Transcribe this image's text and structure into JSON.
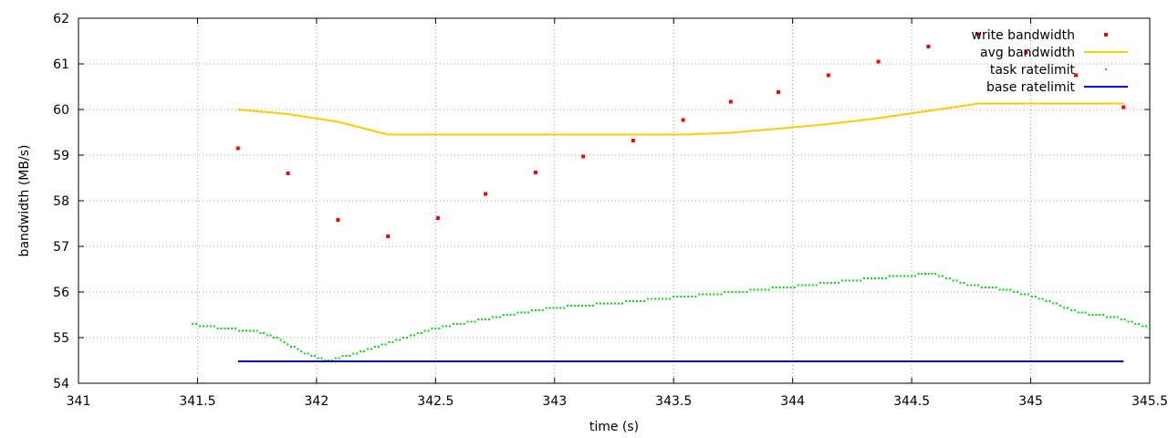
{
  "chart_data": {
    "type": "scatter",
    "title": "",
    "xlabel": "time (s)",
    "ylabel": "bandwidth (MB/s)",
    "xlim": [
      341,
      345.5
    ],
    "ylim": [
      54,
      62
    ],
    "xticks": [
      "341",
      "341.5",
      "342",
      "342.5",
      "343",
      "343.5",
      "344",
      "344.5",
      "345",
      "345.5"
    ],
    "yticks": [
      "54",
      "55",
      "56",
      "57",
      "58",
      "59",
      "60",
      "61",
      "62"
    ],
    "grid": true,
    "legend_position": "top-right",
    "series": [
      {
        "name": "write bandwidth",
        "style": "points",
        "color": "#ff0000",
        "x": [
          341.67,
          341.88,
          342.09,
          342.3,
          342.51,
          342.71,
          342.92,
          343.12,
          343.33,
          343.54,
          343.74,
          343.94,
          344.15,
          344.36,
          344.57,
          344.78,
          344.98,
          345.19,
          345.39
        ],
        "y": [
          59.15,
          58.6,
          57.58,
          57.22,
          57.62,
          58.15,
          58.62,
          58.97,
          59.32,
          59.77,
          60.17,
          60.38,
          60.75,
          61.05,
          61.38,
          61.65,
          61.25,
          60.75,
          60.05
        ]
      },
      {
        "name": "avg bandwidth",
        "style": "line",
        "color": "#ffcc00",
        "x": [
          341.67,
          341.88,
          342.09,
          342.3,
          342.51,
          342.71,
          342.92,
          343.12,
          343.33,
          343.54,
          343.74,
          343.94,
          344.15,
          344.36,
          344.57,
          344.78,
          344.98,
          345.19,
          345.39
        ],
        "y": [
          60.0,
          59.9,
          59.73,
          59.45,
          59.45,
          59.45,
          59.45,
          59.45,
          59.45,
          59.45,
          59.49,
          59.58,
          59.68,
          59.81,
          59.97,
          60.13,
          60.13,
          60.13,
          60.13
        ]
      },
      {
        "name": "task ratelimit",
        "style": "dots",
        "color": "#00dd00",
        "x": [
          341.48,
          341.6,
          341.75,
          341.85,
          341.95,
          342.05,
          342.2,
          342.35,
          342.5,
          342.65,
          342.8,
          342.95,
          343.1,
          343.3,
          343.5,
          343.7,
          343.9,
          344.1,
          344.3,
          344.5,
          344.6,
          344.75,
          344.9,
          345.05,
          345.2,
          345.35,
          345.5
        ],
        "y": [
          55.3,
          55.2,
          55.15,
          54.95,
          54.65,
          54.5,
          54.7,
          54.95,
          55.2,
          55.35,
          55.5,
          55.62,
          55.7,
          55.78,
          55.88,
          55.97,
          56.07,
          56.17,
          56.28,
          56.37,
          56.4,
          56.15,
          56.05,
          55.85,
          55.55,
          55.45,
          55.2
        ]
      },
      {
        "name": "base ratelimit",
        "style": "line",
        "color": "#0000ee",
        "x": [
          341.67,
          345.39
        ],
        "y": [
          54.48,
          54.48
        ]
      }
    ]
  }
}
